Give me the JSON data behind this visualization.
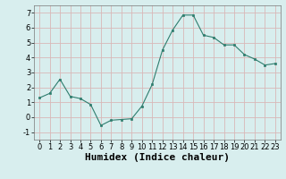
{
  "x": [
    0,
    1,
    2,
    3,
    4,
    5,
    6,
    7,
    8,
    9,
    10,
    11,
    12,
    13,
    14,
    15,
    16,
    17,
    18,
    19,
    20,
    21,
    22,
    23
  ],
  "y": [
    1.3,
    1.6,
    2.55,
    1.4,
    1.25,
    0.85,
    -0.55,
    -0.2,
    -0.15,
    -0.1,
    0.75,
    2.2,
    4.5,
    5.85,
    6.85,
    6.85,
    5.5,
    5.35,
    4.85,
    4.85,
    4.2,
    3.9,
    3.5,
    3.6
  ],
  "line_color": "#2e7d6e",
  "marker": "s",
  "marker_size": 2,
  "xlabel": "Humidex (Indice chaleur)",
  "xlim": [
    -0.5,
    23.5
  ],
  "ylim": [
    -1.5,
    7.5
  ],
  "yticks": [
    -1,
    0,
    1,
    2,
    3,
    4,
    5,
    6,
    7
  ],
  "xticks": [
    0,
    1,
    2,
    3,
    4,
    5,
    6,
    7,
    8,
    9,
    10,
    11,
    12,
    13,
    14,
    15,
    16,
    17,
    18,
    19,
    20,
    21,
    22,
    23
  ],
  "grid_color": "#d8b8b8",
  "bg_color": "#d8eeee",
  "tick_fontsize": 6,
  "xlabel_fontsize": 8
}
